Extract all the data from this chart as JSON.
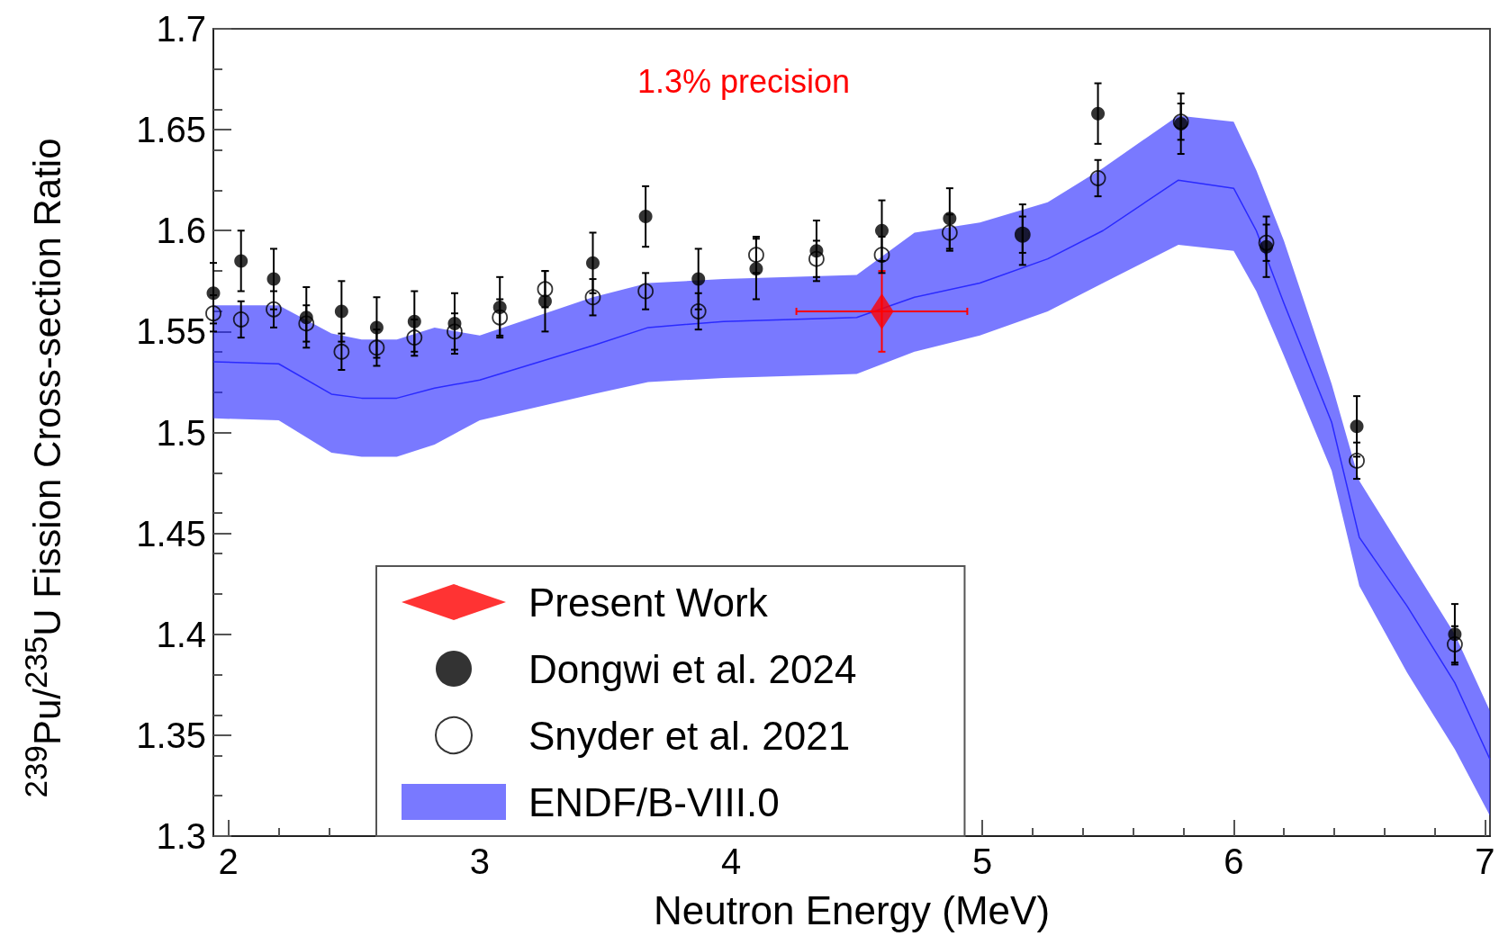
{
  "chart_data": {
    "type": "scatter",
    "xlabel": "Neutron Energy (MeV)",
    "ylabel": "$^{239}$Pu/$^{235}$U Fission Cross-section Ratio",
    "annotations": [
      "1.3% precision"
    ],
    "xlim": [
      1.94,
      7.02
    ],
    "xticks": [
      2,
      3,
      4,
      5,
      6,
      7
    ],
    "ylim": [
      1.3,
      1.7
    ],
    "yticks": [
      1.3,
      1.35,
      1.4,
      1.45,
      1.5,
      1.55,
      1.6,
      1.65,
      1.7
    ],
    "legend": "bottom left",
    "series": [
      {
        "name": "Present Work",
        "type": "scatter",
        "marker": "diamond",
        "color": "#ff0000",
        "x": [
          4.6
        ],
        "values": [
          1.56
        ],
        "errors": [
          0.02
        ],
        "xerrors": [
          0.34
        ]
      },
      {
        "name": "Dongwi et al. 2024",
        "type": "scatter",
        "marker": "circle",
        "color": "#000000",
        "x": [
          1.94,
          2.05,
          2.18,
          2.31,
          2.45,
          2.59,
          2.74,
          2.9,
          3.08,
          3.26,
          3.45,
          3.66,
          3.87,
          4.1,
          4.34,
          4.6,
          4.87,
          5.16,
          5.46,
          5.79,
          6.13,
          6.49,
          6.88
        ],
        "values": [
          1.569,
          1.585,
          1.576,
          1.557,
          1.56,
          1.552,
          1.555,
          1.554,
          1.562,
          1.565,
          1.584,
          1.607,
          1.576,
          1.581,
          1.59,
          1.6,
          1.606,
          1.598,
          1.658,
          1.653,
          1.592,
          1.503,
          1.4
        ],
        "errors": [
          0.015,
          0.015,
          0.015,
          0.015,
          0.015,
          0.015,
          0.015,
          0.015,
          0.015,
          0.015,
          0.015,
          0.015,
          0.015,
          0.015,
          0.015,
          0.015,
          0.015,
          0.015,
          0.015,
          0.015,
          0.015,
          0.015,
          0.015
        ]
      },
      {
        "name": "Snyder et al. 2021",
        "type": "scatter",
        "marker": "circle",
        "color": "#000000",
        "x": [
          1.94,
          2.05,
          2.18,
          2.31,
          2.45,
          2.59,
          2.74,
          2.9,
          3.08,
          3.26,
          3.45,
          3.66,
          3.87,
          4.1,
          4.34,
          4.6,
          4.87,
          5.16,
          5.46,
          5.79,
          6.13,
          6.49,
          6.88
        ],
        "values": [
          1.559,
          1.556,
          1.561,
          1.554,
          1.54,
          1.542,
          1.547,
          1.55,
          1.557,
          1.571,
          1.567,
          1.57,
          1.56,
          1.588,
          1.586,
          1.588,
          1.599,
          1.598,
          1.626,
          1.654,
          1.594,
          1.486,
          1.395
        ],
        "errors": [
          0.009,
          0.009,
          0.009,
          0.009,
          0.009,
          0.009,
          0.009,
          0.009,
          0.009,
          0.009,
          0.009,
          0.009,
          0.009,
          0.009,
          0.009,
          0.009,
          0.009,
          0.009,
          0.009,
          0.009,
          0.009,
          0.009,
          0.009
        ]
      },
      {
        "name": "ENDF/B-VIII.0",
        "type": "line",
        "color": "#2a2aff",
        "x": [
          1.94,
          2.2,
          2.41,
          2.53,
          2.67,
          2.82,
          3.0,
          3.45,
          3.67,
          3.97,
          4.5,
          4.73,
          4.99,
          5.26,
          5.48,
          5.78,
          6.0,
          6.09,
          6.2,
          6.39,
          6.5,
          6.69,
          6.88,
          7.02
        ],
        "values": [
          1.535,
          1.534,
          1.519,
          1.517,
          1.517,
          1.522,
          1.526,
          1.543,
          1.552,
          1.555,
          1.557,
          1.567,
          1.574,
          1.586,
          1.6,
          1.625,
          1.621,
          1.6,
          1.564,
          1.505,
          1.448,
          1.414,
          1.376,
          1.338
        ],
        "upper": [
          1.563,
          1.563,
          1.549,
          1.546,
          1.546,
          1.552,
          1.548,
          1.567,
          1.574,
          1.576,
          1.578,
          1.599,
          1.604,
          1.614,
          1.631,
          1.657,
          1.654,
          1.63,
          1.595,
          1.524,
          1.476,
          1.438,
          1.4,
          1.362
        ],
        "lower": [
          1.507,
          1.506,
          1.49,
          1.488,
          1.488,
          1.494,
          1.506,
          1.519,
          1.525,
          1.527,
          1.529,
          1.54,
          1.548,
          1.56,
          1.574,
          1.593,
          1.59,
          1.57,
          1.538,
          1.481,
          1.424,
          1.381,
          1.343,
          1.31
        ]
      }
    ]
  }
}
